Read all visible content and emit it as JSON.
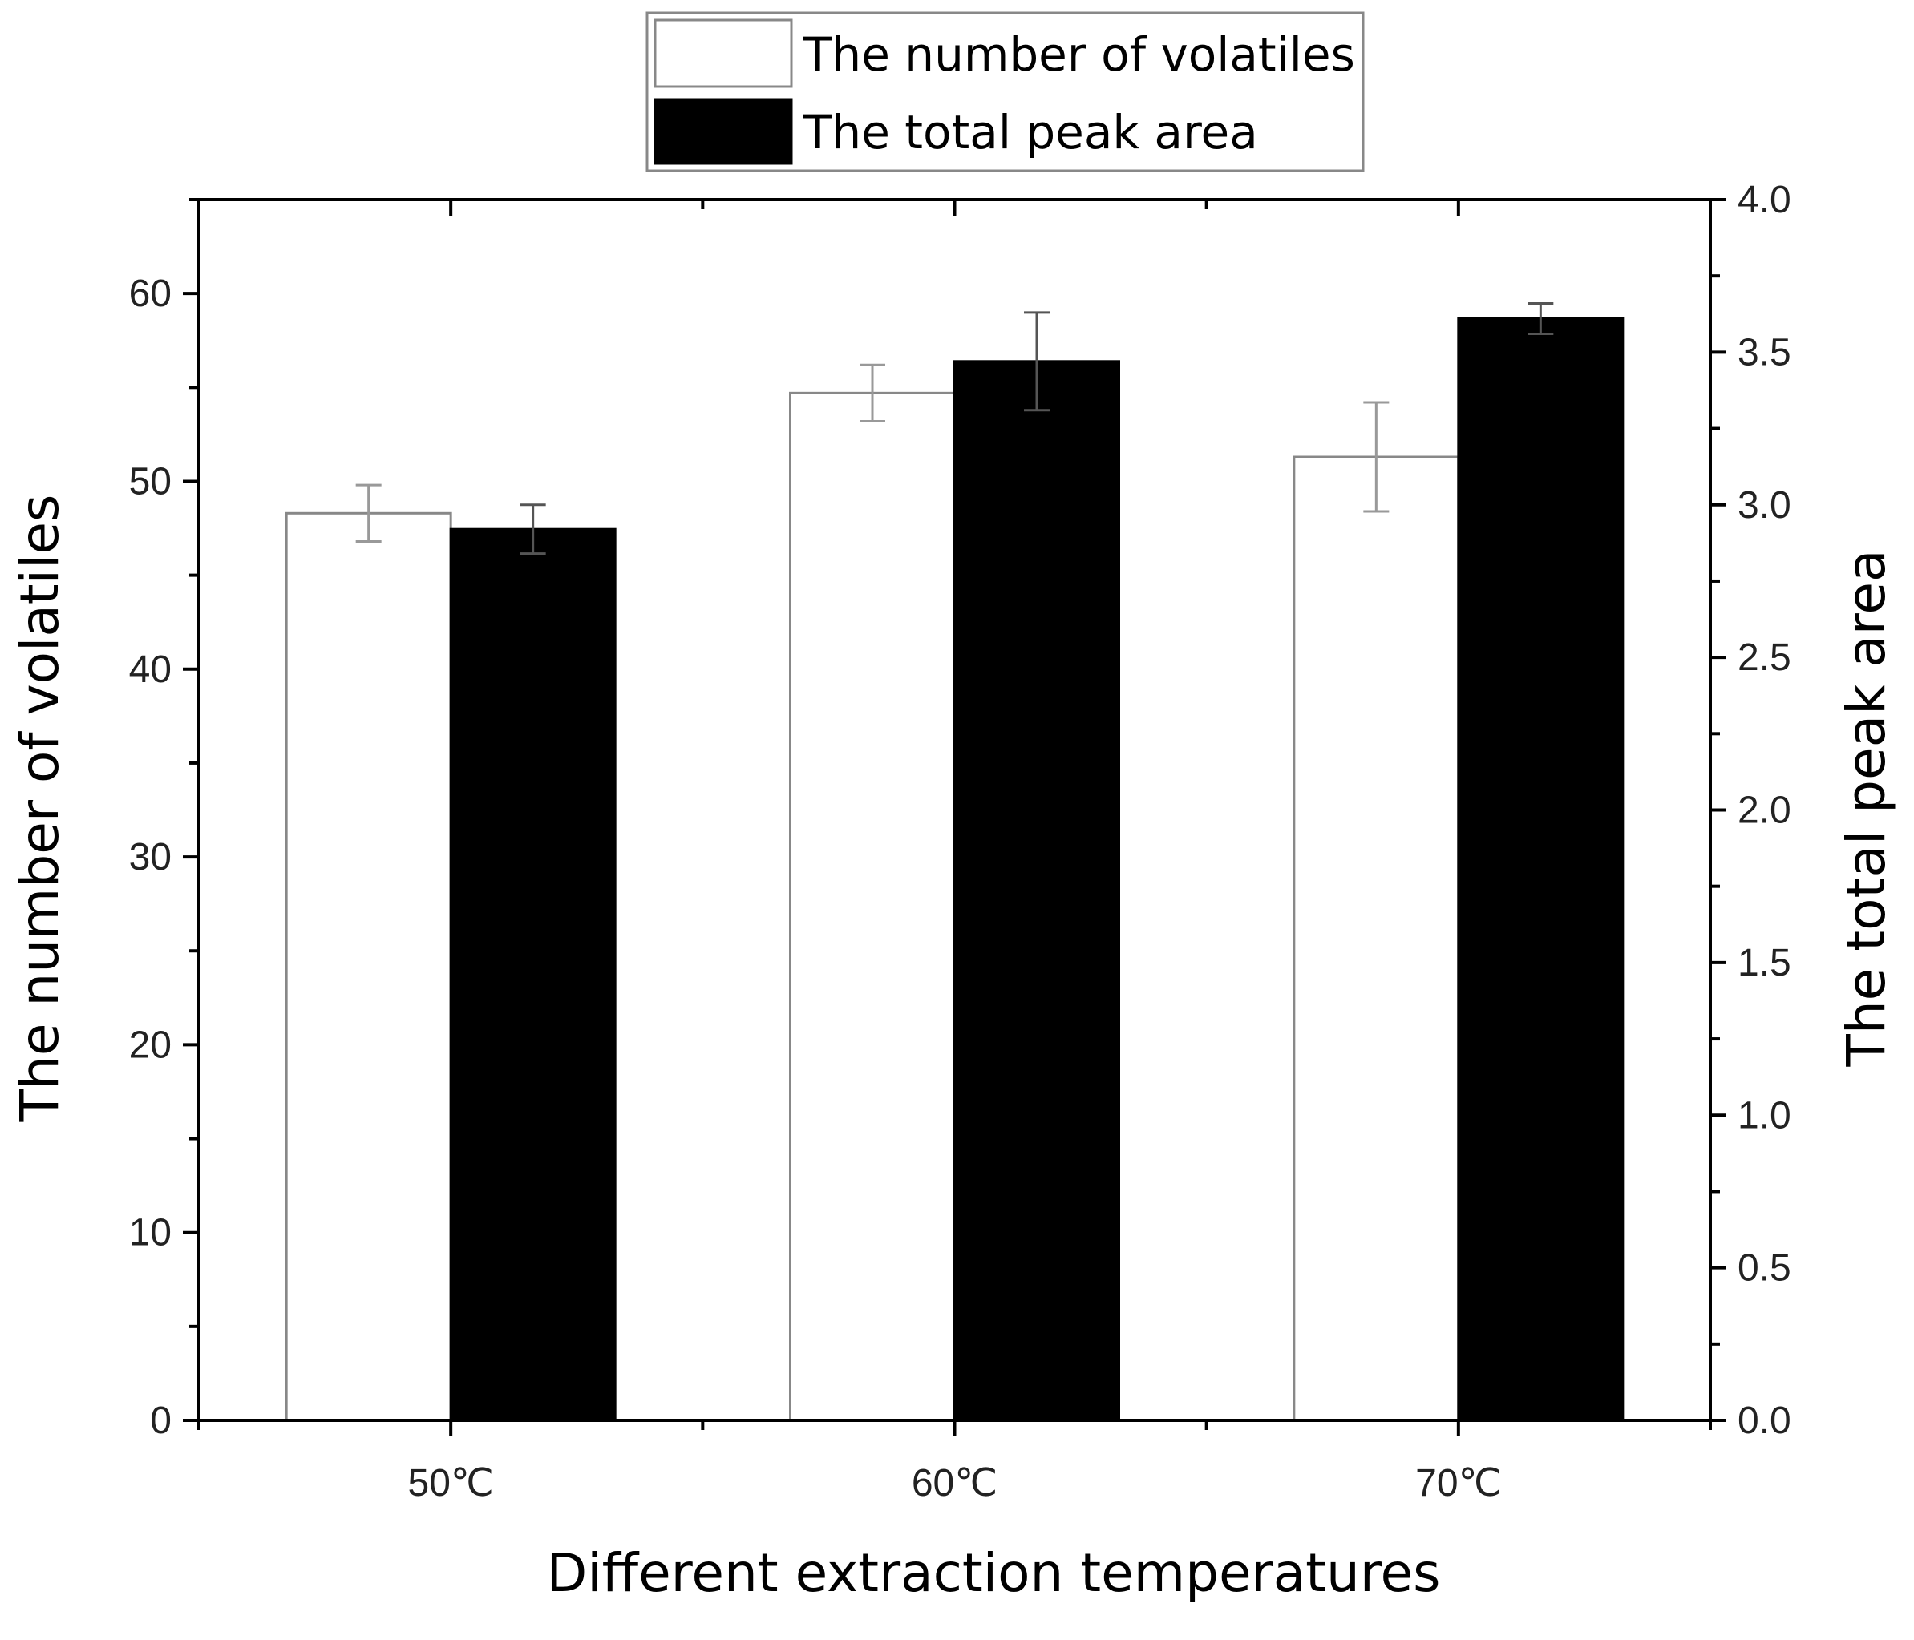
{
  "chart_data": {
    "type": "bar",
    "categories": [
      "50℃",
      "60℃",
      "70℃"
    ],
    "xlabel": "Different extraction temperatures",
    "ylabel": "The number of volatiles",
    "y2label": "The total peak area",
    "ylim": [
      0,
      65
    ],
    "y2lim": [
      0,
      4.0
    ],
    "yticks": [
      "0",
      "10",
      "20",
      "30",
      "40",
      "50",
      "60"
    ],
    "y2ticks": [
      "0.0",
      "0.5",
      "1.0",
      "1.5",
      "2.0",
      "2.5",
      "3.0",
      "3.5",
      "4.0"
    ],
    "grid": false,
    "legend_position": "top-center",
    "series": [
      {
        "name": "The number of volatiles",
        "axis": "left",
        "values": [
          48.3,
          54.7,
          51.3
        ],
        "errors": [
          1.5,
          1.5,
          2.9
        ],
        "fill": "#ffffff",
        "stroke": "#888888",
        "error_color": "#999999"
      },
      {
        "name": "The total peak area",
        "axis": "right",
        "values": [
          2.92,
          3.47,
          3.61
        ],
        "errors": [
          0.08,
          0.16,
          0.05
        ],
        "fill": "#000000",
        "stroke": "#000000",
        "error_color": "#555555"
      }
    ]
  }
}
